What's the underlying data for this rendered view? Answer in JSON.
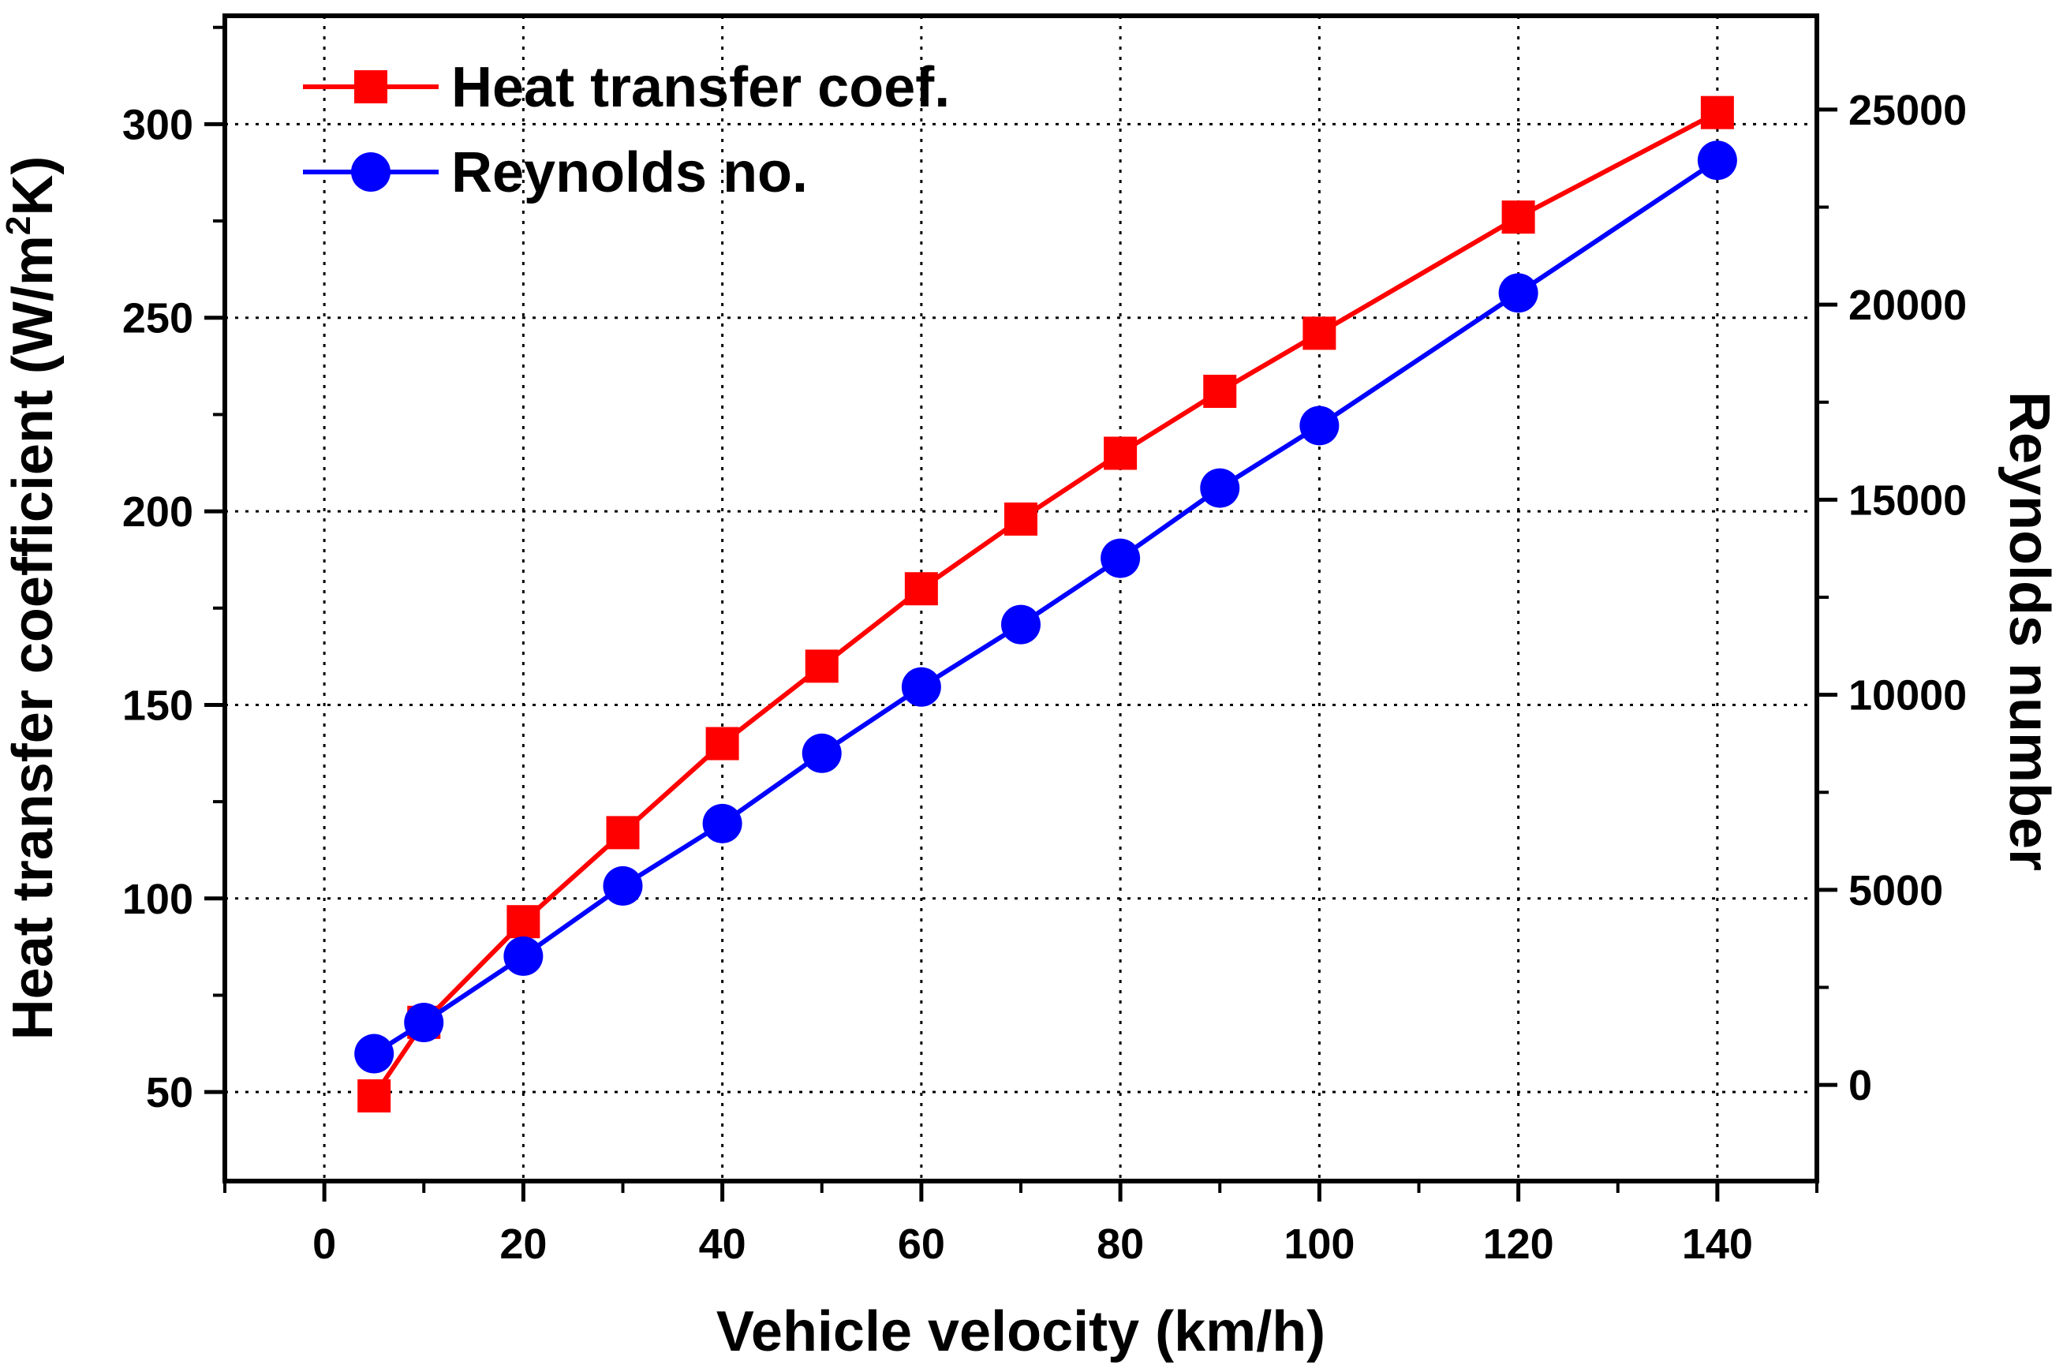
{
  "chart_data": {
    "type": "line",
    "xlabel": "Vehicle velocity (km/h)",
    "ylabel_left": {
      "base": "Heat transfer coefficient (W/m",
      "sup": "2",
      "tail": "K)"
    },
    "ylabel_right": "Reynolds number",
    "xlim": [
      -10,
      150
    ],
    "ylim_left": [
      27,
      328
    ],
    "ylim_right": [
      -2465,
      27405
    ],
    "xticks": [
      "0",
      "20",
      "40",
      "60",
      "80",
      "100",
      "120",
      "140"
    ],
    "yticks_left": [
      "50",
      "100",
      "150",
      "200",
      "250",
      "300"
    ],
    "yticks_right": [
      "0",
      "5000",
      "10000",
      "15000",
      "20000",
      "25000"
    ],
    "grid": true,
    "legend_position": "top-left",
    "series": [
      {
        "name": "Heat transfer coef.",
        "axis": "left",
        "color": "#ff0000",
        "marker": "square",
        "x": [
          5,
          10,
          20,
          30,
          40,
          50,
          60,
          70,
          80,
          90,
          100,
          120,
          140
        ],
        "values": [
          49,
          68,
          94,
          117,
          140,
          160,
          180,
          198,
          215,
          231,
          246,
          276,
          303
        ]
      },
      {
        "name": "Reynolds no.",
        "axis": "right",
        "color": "#0000ff",
        "marker": "circle",
        "x": [
          5,
          10,
          20,
          30,
          40,
          50,
          60,
          70,
          80,
          90,
          100,
          120,
          140
        ],
        "values": [
          800,
          1600,
          3300,
          5100,
          6700,
          8500,
          10200,
          11800,
          13500,
          15300,
          16900,
          20300,
          23700
        ]
      }
    ]
  }
}
